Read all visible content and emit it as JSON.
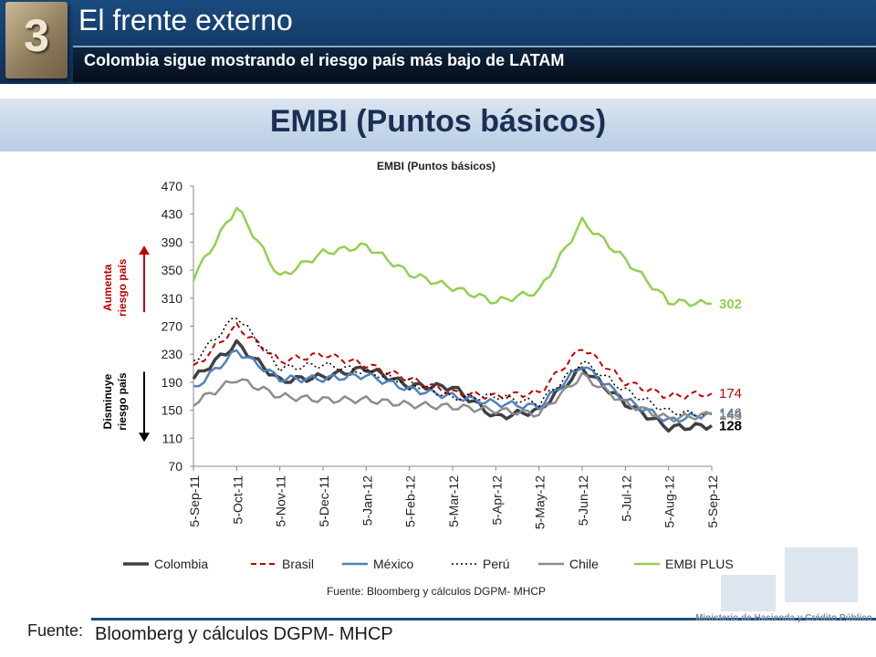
{
  "header": {
    "section_number": "3",
    "title": "El frente externo",
    "subtitle": "Colombia sigue mostrando el riesgo país más bajo de LATAM"
  },
  "slide_title": "EMBI (Puntos básicos)",
  "chart_annotations": {
    "up_label": "Aumenta riesgo país",
    "down_label": "Disminuye riesgo país",
    "up_color": "#c00000",
    "down_color": "#000000",
    "source": "Fuente: Bloomberg y cálculos DGPM- MHCP"
  },
  "chart_data": {
    "type": "line",
    "title": "EMBI (Puntos básicos)",
    "xlabel": "",
    "ylabel": "",
    "ylim": [
      70,
      470
    ],
    "yticks": [
      70,
      110,
      150,
      190,
      230,
      270,
      310,
      350,
      390,
      430,
      470
    ],
    "xticks": [
      "5-Sep-11",
      "5-Oct-11",
      "5-Nov-11",
      "5-Dec-11",
      "5-Jan-12",
      "5-Feb-12",
      "5-Mar-12",
      "5-Apr-12",
      "5-May-12",
      "5-Jun-12",
      "5-Jul-12",
      "5-Aug-12",
      "5-Sep-12"
    ],
    "grid": false,
    "legend_position": "bottom",
    "series": [
      {
        "name": "Colombia",
        "color": "#404040",
        "dash": "solid",
        "width": 3.5,
        "end_label": "128",
        "end_label_color": "#000000",
        "values": [
          195,
          245,
          192,
          198,
          210,
          185,
          183,
          140,
          150,
          210,
          160,
          125,
          128
        ]
      },
      {
        "name": "Brasil",
        "color": "#c00000",
        "dash": "dashed",
        "width": 2,
        "end_label": "174",
        "end_label_color": "#c00000",
        "values": [
          210,
          270,
          220,
          230,
          215,
          195,
          175,
          170,
          175,
          240,
          190,
          170,
          174
        ]
      },
      {
        "name": "México",
        "color": "#4f81bd",
        "dash": "solid",
        "width": 2.5,
        "end_label": "146",
        "end_label_color": "#4f81bd",
        "values": [
          180,
          235,
          195,
          195,
          200,
          180,
          170,
          160,
          155,
          215,
          165,
          135,
          146
        ]
      },
      {
        "name": "Perú",
        "color": "#000000",
        "dash": "dotted",
        "width": 1.5,
        "end_label": "143",
        "end_label_color": "#7f7f7f",
        "values": [
          220,
          285,
          210,
          215,
          205,
          190,
          168,
          170,
          160,
          220,
          178,
          148,
          143
        ]
      },
      {
        "name": "Chile",
        "color": "#8c8c8c",
        "dash": "solid",
        "width": 2.5,
        "end_label": "144",
        "end_label_color": "#7f7f7f",
        "values": [
          160,
          195,
          170,
          165,
          165,
          158,
          155,
          150,
          145,
          200,
          160,
          138,
          144
        ]
      },
      {
        "name": "EMBI PLUS",
        "color": "#92d050",
        "dash": "solid",
        "width": 2.5,
        "end_label": "302",
        "end_label_color": "#92d050",
        "values": [
          340,
          440,
          340,
          375,
          385,
          345,
          325,
          305,
          320,
          420,
          365,
          305,
          302
        ]
      }
    ]
  },
  "footer": {
    "label": "Fuente:",
    "source": "Bloomberg y cálculos DGPM- MHCP",
    "ministry": "Ministerio de Hacienda y Crédito Público"
  }
}
